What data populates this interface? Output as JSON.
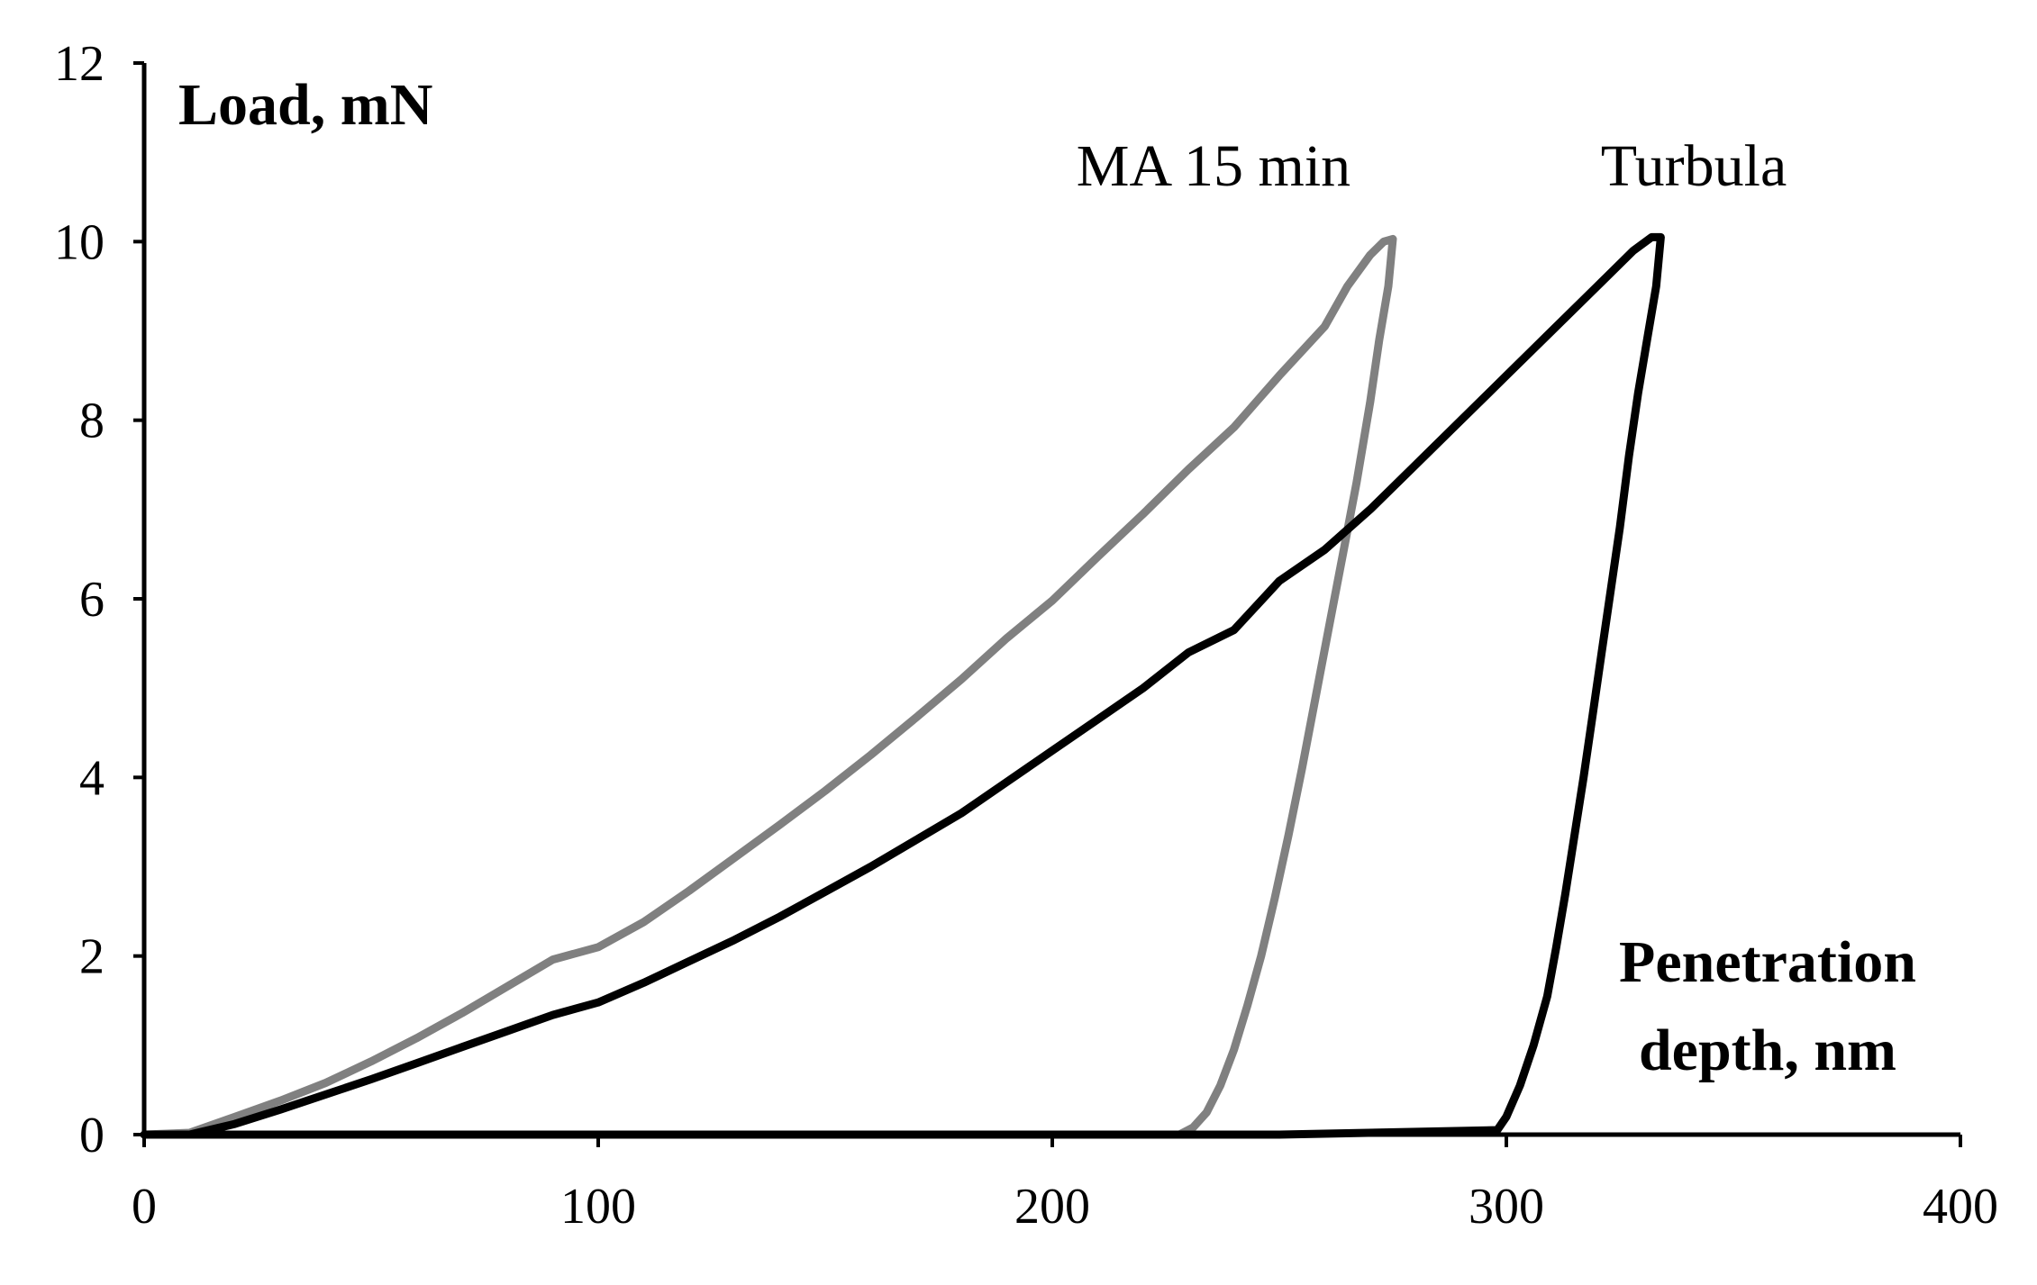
{
  "chart_data": {
    "type": "line",
    "title": "",
    "ylabel": "Load, mN",
    "xlabel_lines": [
      "Penetration",
      "depth, nm"
    ],
    "xlim": [
      0,
      400
    ],
    "ylim": [
      0,
      12
    ],
    "xticks": [
      0,
      100,
      200,
      300,
      400
    ],
    "yticks": [
      0,
      2,
      4,
      6,
      8,
      10,
      12
    ],
    "xtick_labels": [
      "0",
      "100",
      "200",
      "300",
      "400"
    ],
    "ytick_labels": [
      "0",
      "2",
      "4",
      "6",
      "8",
      "10",
      "12"
    ],
    "grid": false,
    "legend": "none (series labelled directly on plot)",
    "series": [
      {
        "name": "MA 15 min",
        "color": "#808080",
        "x": [
          0,
          10,
          20,
          30,
          40,
          50,
          60,
          70,
          80,
          90,
          100,
          110,
          120,
          130,
          140,
          150,
          160,
          170,
          180,
          190,
          200,
          210,
          220,
          230,
          240,
          250,
          260,
          265,
          270,
          273,
          275,
          274,
          272,
          270,
          267,
          264,
          261,
          258,
          255,
          252,
          249,
          246,
          243,
          240,
          237,
          234,
          231,
          228,
          200,
          150,
          100,
          50,
          0
        ],
        "y": [
          0,
          0.02,
          0.2,
          0.38,
          0.58,
          0.82,
          1.08,
          1.36,
          1.66,
          1.96,
          2.1,
          2.38,
          2.73,
          3.1,
          3.47,
          3.85,
          4.25,
          4.67,
          5.1,
          5.56,
          5.98,
          6.47,
          6.95,
          7.45,
          7.92,
          8.5,
          9.05,
          9.5,
          9.85,
          10.0,
          10.03,
          9.5,
          8.9,
          8.2,
          7.3,
          6.5,
          5.7,
          4.9,
          4.1,
          3.35,
          2.65,
          2.0,
          1.45,
          0.95,
          0.55,
          0.25,
          0.08,
          0.0,
          0.0,
          0.0,
          0.0,
          0.0,
          0.0
        ]
      },
      {
        "name": "Turbula",
        "color": "#000000",
        "x": [
          0,
          10,
          20,
          30,
          40,
          50,
          60,
          70,
          80,
          90,
          100,
          110,
          120,
          130,
          140,
          150,
          160,
          170,
          180,
          190,
          200,
          210,
          220,
          230,
          240,
          250,
          260,
          270,
          280,
          290,
          300,
          310,
          320,
          328,
          332,
          334,
          333,
          331,
          329,
          327,
          325,
          323,
          321,
          319,
          317,
          315,
          313,
          311,
          309,
          306,
          303,
          300,
          298,
          250,
          200,
          150,
          100,
          50,
          0
        ],
        "y": [
          0,
          0.0,
          0.12,
          0.28,
          0.45,
          0.62,
          0.8,
          0.98,
          1.16,
          1.34,
          1.48,
          1.7,
          1.94,
          2.18,
          2.44,
          2.72,
          3.0,
          3.3,
          3.6,
          3.95,
          4.3,
          4.65,
          5.0,
          5.4,
          5.65,
          6.2,
          6.55,
          7.0,
          7.5,
          8.0,
          8.5,
          9.0,
          9.5,
          9.9,
          10.05,
          10.05,
          9.5,
          8.9,
          8.3,
          7.6,
          6.8,
          6.1,
          5.4,
          4.7,
          4.0,
          3.35,
          2.7,
          2.1,
          1.55,
          1.0,
          0.55,
          0.2,
          0.05,
          0.0,
          0.0,
          0.0,
          0.0,
          0.0,
          0.0
        ]
      }
    ]
  }
}
